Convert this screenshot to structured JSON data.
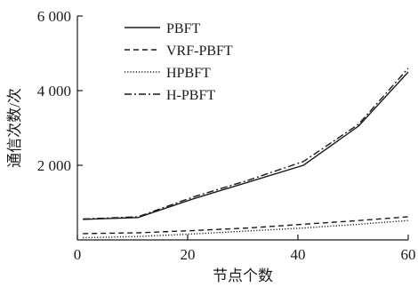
{
  "chart_data": {
    "type": "line",
    "xlabel": "节点个数",
    "ylabel": "通信次数/次",
    "xlim": [
      0,
      60
    ],
    "ylim": [
      0,
      6000
    ],
    "x_ticks": [
      0,
      20,
      40,
      60
    ],
    "x_tick_labels": [
      "0",
      "20",
      "40",
      "60"
    ],
    "y_ticks": [
      2000,
      4000,
      6000
    ],
    "y_tick_labels": [
      "2 000",
      "4 000",
      "6 000"
    ],
    "grid": false,
    "legend_position": "top-left",
    "series": [
      {
        "name": "PBFT",
        "dash": "solid",
        "x": [
          1,
          11,
          21,
          31,
          41,
          51,
          60
        ],
        "y": [
          550,
          600,
          1100,
          1550,
          2000,
          3050,
          4500
        ]
      },
      {
        "name": "VRF-PBFT",
        "dash": "dashed",
        "x": [
          1,
          11,
          21,
          31,
          41,
          51,
          60
        ],
        "y": [
          170,
          190,
          250,
          320,
          420,
          520,
          620
        ]
      },
      {
        "name": "HPBFT",
        "dash": "dotted",
        "x": [
          1,
          11,
          21,
          31,
          41,
          51,
          60
        ],
        "y": [
          60,
          90,
          160,
          240,
          320,
          420,
          520
        ]
      },
      {
        "name": "H-PBFT",
        "dash": "dashdot",
        "x": [
          1,
          11,
          21,
          31,
          41,
          51,
          60
        ],
        "y": [
          560,
          620,
          1150,
          1600,
          2100,
          3100,
          4600
        ]
      }
    ]
  }
}
